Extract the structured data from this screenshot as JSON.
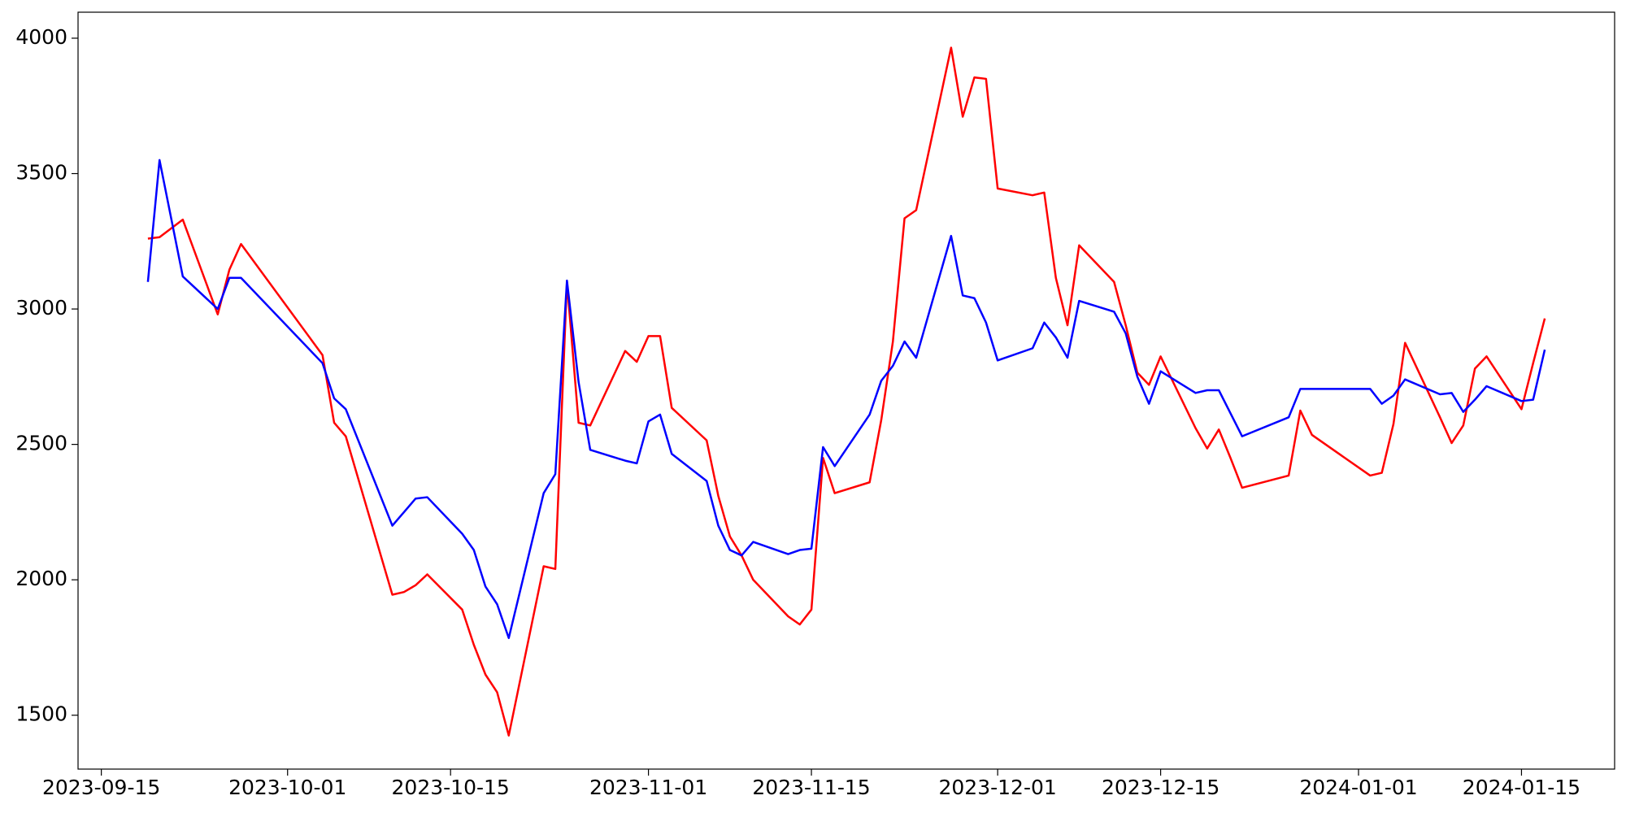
{
  "chart_data": {
    "type": "line",
    "x": [
      "2023-09-19",
      "2023-09-20",
      "2023-09-22",
      "2023-09-25",
      "2023-09-26",
      "2023-09-27",
      "2023-10-04",
      "2023-10-05",
      "2023-10-06",
      "2023-10-10",
      "2023-10-11",
      "2023-10-12",
      "2023-10-13",
      "2023-10-16",
      "2023-10-17",
      "2023-10-18",
      "2023-10-19",
      "2023-10-20",
      "2023-10-23",
      "2023-10-24",
      "2023-10-25",
      "2023-10-26",
      "2023-10-27",
      "2023-10-30",
      "2023-10-31",
      "2023-11-01",
      "2023-11-02",
      "2023-11-03",
      "2023-11-06",
      "2023-11-07",
      "2023-11-08",
      "2023-11-09",
      "2023-11-10",
      "2023-11-13",
      "2023-11-14",
      "2023-11-15",
      "2023-11-16",
      "2023-11-17",
      "2023-11-20",
      "2023-11-21",
      "2023-11-22",
      "2023-11-23",
      "2023-11-24",
      "2023-11-27",
      "2023-11-28",
      "2023-11-29",
      "2023-11-30",
      "2023-12-01",
      "2023-12-04",
      "2023-12-05",
      "2023-12-06",
      "2023-12-07",
      "2023-12-08",
      "2023-12-11",
      "2023-12-12",
      "2023-12-13",
      "2023-12-14",
      "2023-12-15",
      "2023-12-18",
      "2023-12-19",
      "2023-12-20",
      "2023-12-21",
      "2023-12-22",
      "2023-12-26",
      "2023-12-27",
      "2023-12-28",
      "2024-01-02",
      "2024-01-03",
      "2024-01-04",
      "2024-01-05",
      "2024-01-08",
      "2024-01-09",
      "2024-01-10",
      "2024-01-11",
      "2024-01-12",
      "2024-01-15",
      "2024-01-16",
      "2024-01-17"
    ],
    "series": [
      {
        "color": "#ff0000",
        "values": [
          3260,
          3265,
          3330,
          2980,
          3145,
          3240,
          2830,
          2580,
          2530,
          1945,
          1955,
          1980,
          2020,
          1890,
          1760,
          1650,
          1585,
          1425,
          2050,
          2040,
          3100,
          2580,
          2570,
          2845,
          2805,
          2900,
          2900,
          2635,
          2515,
          2310,
          2160,
          2090,
          2000,
          1865,
          1835,
          1890,
          2450,
          2320,
          2360,
          2590,
          2880,
          3335,
          3365,
          3965,
          3710,
          3855,
          3850,
          3445,
          3420,
          3430,
          3115,
          2940,
          3235,
          3100,
          2940,
          2765,
          2720,
          2825,
          2560,
          2485,
          2555,
          2450,
          2340,
          2385,
          2625,
          2535,
          2385,
          2395,
          2575,
          2875,
          2600,
          2505,
          2570,
          2780,
          2825,
          2630,
          2800,
          2965
        ]
      },
      {
        "color": "#0000ff",
        "values": [
          3100,
          3550,
          3120,
          3000,
          3115,
          3115,
          2800,
          2670,
          2630,
          2200,
          2250,
          2300,
          2305,
          2170,
          2110,
          1975,
          1910,
          1785,
          2320,
          2390,
          3105,
          2730,
          2480,
          2440,
          2430,
          2585,
          2610,
          2465,
          2365,
          2200,
          2110,
          2090,
          2140,
          2095,
          2110,
          2115,
          2490,
          2420,
          2610,
          2735,
          2790,
          2880,
          2820,
          3270,
          3050,
          3040,
          2950,
          2810,
          2855,
          2950,
          2895,
          2820,
          3030,
          2990,
          2910,
          2750,
          2650,
          2770,
          2690,
          2700,
          2700,
          2615,
          2530,
          2600,
          2705,
          2705,
          2705,
          2650,
          2680,
          2740,
          2685,
          2690,
          2620,
          2665,
          2715,
          2660,
          2665,
          2850
        ]
      }
    ],
    "xlim": [
      "2023-09-13",
      "2024-01-23"
    ],
    "xticks": [
      "2023-09-15",
      "2023-10-01",
      "2023-10-15",
      "2023-11-01",
      "2023-11-15",
      "2023-12-01",
      "2023-12-15",
      "2024-01-01",
      "2024-01-15"
    ],
    "ylim": [
      1301,
      4096
    ],
    "yticks": [
      1500,
      2000,
      2500,
      3000,
      3500,
      4000
    ],
    "grid": false
  }
}
